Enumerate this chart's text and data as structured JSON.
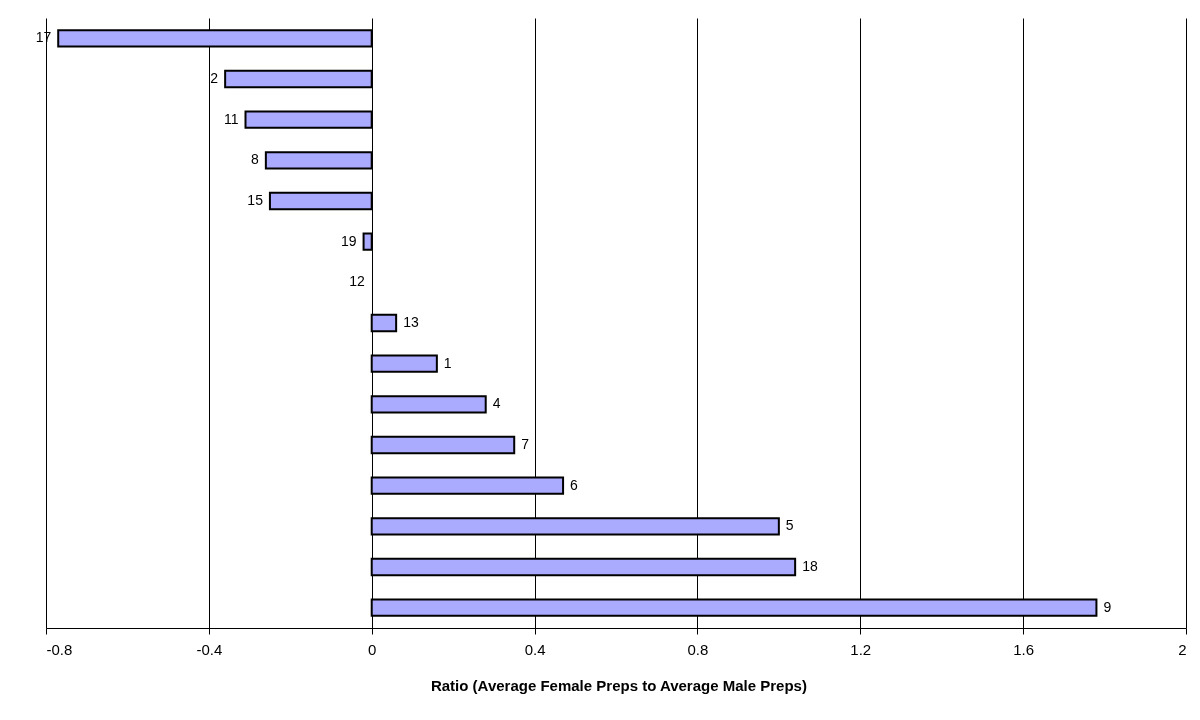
{
  "chart_data": {
    "type": "bar",
    "orientation": "horizontal",
    "xlabel": "Ratio (Average Female Preps to Average Male Preps)",
    "categories": [
      "17",
      "2",
      "11",
      "8",
      "15",
      "19",
      "12",
      "13",
      "1",
      "4",
      "7",
      "6",
      "5",
      "18",
      "9"
    ],
    "values": [
      -0.77,
      -0.36,
      -0.31,
      -0.26,
      -0.25,
      -0.02,
      0,
      0.06,
      0.16,
      0.28,
      0.35,
      0.47,
      1.0,
      1.04,
      1.78
    ],
    "color": "#aaaaff",
    "xlim": [
      -0.8,
      2
    ],
    "xticks": [
      -0.8,
      -0.4,
      0,
      0.4,
      0.8,
      1.2,
      1.6,
      2
    ],
    "grid": "x",
    "tick_labels": "x"
  }
}
